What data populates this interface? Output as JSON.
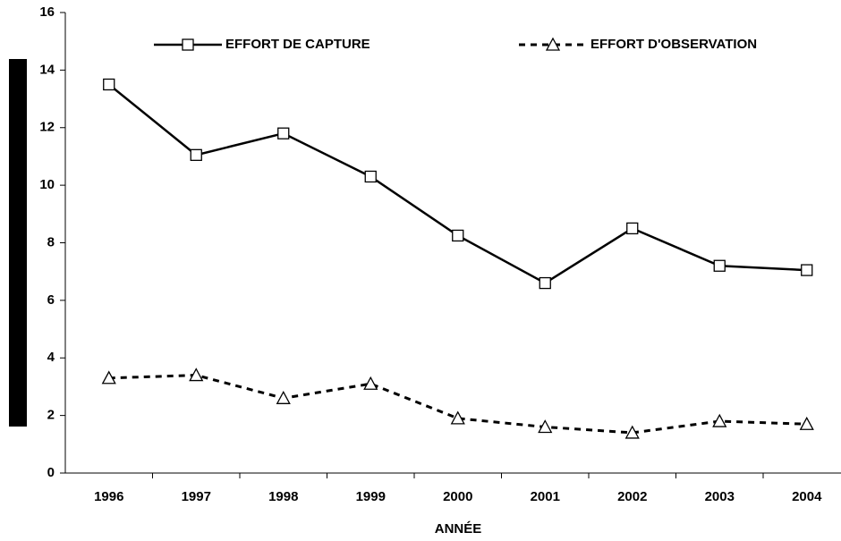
{
  "chart_data": {
    "type": "line",
    "x_label": "ANNÉE",
    "categories": [
      "1996",
      "1997",
      "1998",
      "1999",
      "2000",
      "2001",
      "2002",
      "2003",
      "2004"
    ],
    "series": [
      {
        "name": "EFFORT DE CAPTURE",
        "color": "#000000",
        "dash": "solid",
        "marker": "square",
        "values": [
          13.5,
          11.05,
          11.8,
          10.3,
          8.25,
          6.6,
          8.5,
          7.2,
          7.05
        ]
      },
      {
        "name": "EFFORT D'OBSERVATION",
        "color": "#000000",
        "dash": "dashed",
        "marker": "triangle",
        "values": [
          3.3,
          3.4,
          2.6,
          3.1,
          1.9,
          1.6,
          1.4,
          1.8,
          1.7
        ]
      }
    ],
    "ylim": [
      0,
      16
    ],
    "yticks": [
      0,
      2,
      4,
      6,
      8,
      10,
      12,
      14,
      16
    ],
    "grid": false,
    "legend": "top"
  }
}
